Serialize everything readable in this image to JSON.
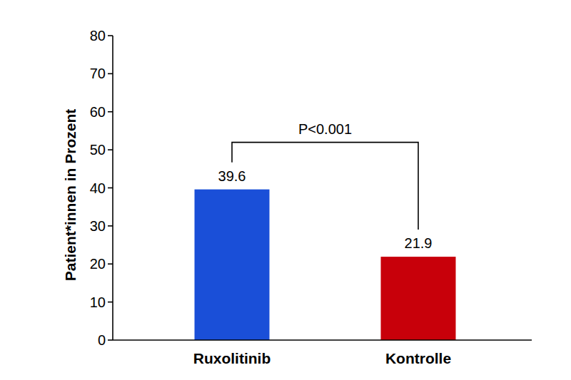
{
  "chart_data": {
    "type": "bar",
    "y_label": "Patient*innen in Prozent",
    "annotation": "P<0.001",
    "categories": [
      "Ruxolitinib",
      "Kontrolle"
    ],
    "values": [
      39.6,
      21.9
    ],
    "colors": [
      "#1a4fd8",
      "#c8000a"
    ],
    "ylim": [
      0,
      80
    ],
    "yticks": [
      0,
      10,
      20,
      30,
      40,
      50,
      60,
      70,
      80
    ],
    "grid": false,
    "data_labels": true
  }
}
